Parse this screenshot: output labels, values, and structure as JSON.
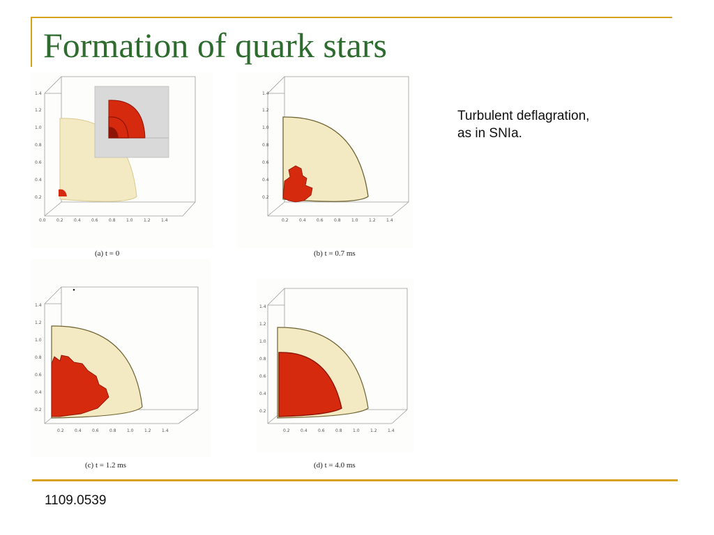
{
  "slide": {
    "title": "Formation of quark stars",
    "note_lines": [
      "Turbulent deflagration,",
      "as in SNIa."
    ],
    "footer": "1109.0539"
  },
  "figure": {
    "panels": [
      {
        "id": "a",
        "caption": "(a) t = 0"
      },
      {
        "id": "b",
        "caption": "(b) t = 0.7 ms"
      },
      {
        "id": "c",
        "caption": "(c) t = 1.2 ms"
      },
      {
        "id": "d",
        "caption": "(d) t = 4.0 ms"
      }
    ],
    "y_ticks": [
      "1.4",
      "1.2",
      "1.0",
      "0.8",
      "0.6",
      "0.4",
      "0.2"
    ],
    "x_ticks_a": [
      "0.0",
      "0.2",
      "0.4",
      "0.6",
      "0.8",
      "1.0",
      "1.2",
      "1.4"
    ],
    "x_ticks": [
      "0.2",
      "0.4",
      "0.6",
      "0.8",
      "1.0",
      "1.2",
      "1.4"
    ],
    "colors": {
      "shell": "#f3e9c2",
      "shell_edge": "#d8c98e",
      "burn": "#d62a0e",
      "burn_dark": "#8e1406",
      "frame": "#9a9a9a",
      "inset_bg": "#d9d9d9"
    }
  }
}
